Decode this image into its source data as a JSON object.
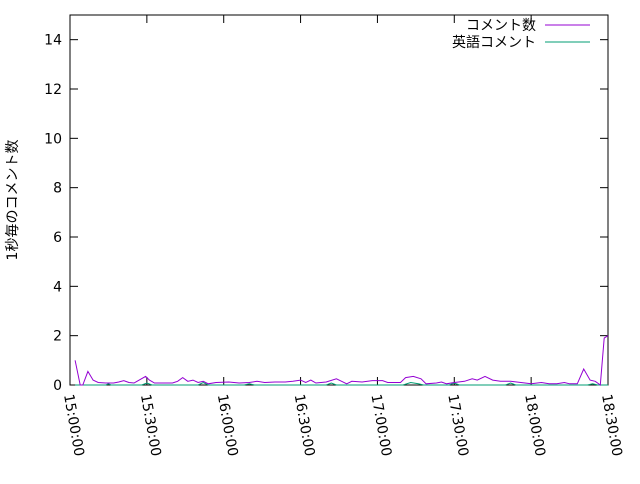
{
  "chart_data": {
    "type": "line",
    "title": "",
    "xlabel": "",
    "ylabel": "1秒毎のコメント数",
    "xlim": [
      "15:00:00",
      "18:30:00"
    ],
    "ylim": [
      0,
      15
    ],
    "xticks": [
      "15:00:00",
      "15:30:00",
      "16:00:00",
      "16:30:00",
      "17:00:00",
      "17:30:00",
      "18:00:00",
      "18:30:00"
    ],
    "yticks": [
      "0",
      "2",
      "4",
      "6",
      "8",
      "10",
      "12",
      "14"
    ],
    "grid": false,
    "legend_position": "top-right",
    "series": [
      {
        "name": "コメント数",
        "color": "#9400d3",
        "points": [
          [
            "15:02:00",
            1.0
          ],
          [
            "15:04:00",
            0
          ],
          [
            "15:05:00",
            0
          ],
          [
            "15:07:00",
            0.55
          ],
          [
            "15:09:00",
            0.2
          ],
          [
            "15:11:00",
            0.1
          ],
          [
            "15:14:00",
            0.08
          ],
          [
            "15:17:00",
            0.08
          ],
          [
            "15:19:00",
            0.12
          ],
          [
            "15:21:00",
            0.18
          ],
          [
            "15:23:00",
            0.1
          ],
          [
            "15:25:00",
            0.08
          ],
          [
            "15:27:00",
            0.2
          ],
          [
            "15:29:30",
            0.35
          ],
          [
            "15:31:00",
            0.2
          ],
          [
            "15:33:00",
            0.08
          ],
          [
            "15:36:00",
            0.08
          ],
          [
            "15:40:00",
            0.08
          ],
          [
            "15:42:00",
            0.15
          ],
          [
            "15:44:00",
            0.3
          ],
          [
            "15:46:00",
            0.15
          ],
          [
            "15:48:00",
            0.2
          ],
          [
            "15:50:00",
            0.1
          ],
          [
            "15:52:00",
            0.15
          ],
          [
            "15:54:00",
            0.05
          ],
          [
            "15:57:00",
            0.1
          ],
          [
            "16:02:00",
            0.12
          ],
          [
            "16:06:00",
            0.08
          ],
          [
            "16:10:00",
            0.1
          ],
          [
            "16:13:00",
            0.15
          ],
          [
            "16:16:00",
            0.1
          ],
          [
            "16:20:00",
            0.12
          ],
          [
            "16:24:00",
            0.12
          ],
          [
            "16:27:00",
            0.15
          ],
          [
            "16:30:00",
            0.2
          ],
          [
            "16:32:00",
            0.1
          ],
          [
            "16:34:00",
            0.2
          ],
          [
            "16:36:00",
            0.08
          ],
          [
            "16:40:00",
            0.12
          ],
          [
            "16:44:00",
            0.25
          ],
          [
            "16:46:00",
            0.15
          ],
          [
            "16:48:00",
            0.05
          ],
          [
            "16:50:00",
            0.15
          ],
          [
            "16:54:00",
            0.12
          ],
          [
            "16:58:00",
            0.18
          ],
          [
            "17:02:00",
            0.18
          ],
          [
            "17:04:00",
            0.1
          ],
          [
            "17:07:00",
            0.1
          ],
          [
            "17:09:00",
            0.1
          ],
          [
            "17:11:00",
            0.3
          ],
          [
            "17:14:00",
            0.35
          ],
          [
            "17:17:00",
            0.25
          ],
          [
            "17:19:00",
            0.05
          ],
          [
            "17:23:00",
            0.08
          ],
          [
            "17:25:00",
            0.12
          ],
          [
            "17:27:00",
            0.05
          ],
          [
            "17:30:00",
            0.1
          ],
          [
            "17:34:00",
            0.15
          ],
          [
            "17:37:00",
            0.25
          ],
          [
            "17:39:00",
            0.2
          ],
          [
            "17:42:00",
            0.35
          ],
          [
            "17:45:00",
            0.2
          ],
          [
            "17:48:00",
            0.15
          ],
          [
            "17:52:00",
            0.15
          ],
          [
            "17:56:00",
            0.1
          ],
          [
            "18:00:00",
            0.05
          ],
          [
            "18:04:00",
            0.1
          ],
          [
            "18:07:00",
            0.05
          ],
          [
            "18:10:00",
            0.05
          ],
          [
            "18:13:00",
            0.1
          ],
          [
            "18:15:00",
            0.05
          ],
          [
            "18:18:00",
            0.05
          ],
          [
            "18:20:30",
            0.65
          ],
          [
            "18:23:00",
            0.2
          ],
          [
            "18:25:00",
            0.15
          ],
          [
            "18:27:00",
            0
          ],
          [
            "18:28:30",
            1.9
          ],
          [
            "18:30:00",
            2.0
          ]
        ]
      },
      {
        "name": "英語コメント",
        "color": "#009e73",
        "points": [
          [
            "15:02:00",
            0
          ],
          [
            "15:14:00",
            0
          ],
          [
            "15:15:00",
            0.05
          ],
          [
            "15:16:00",
            0
          ],
          [
            "15:28:00",
            0
          ],
          [
            "15:30:00",
            0.08
          ],
          [
            "15:32:00",
            0
          ],
          [
            "15:50:00",
            0
          ],
          [
            "15:52:00",
            0.1
          ],
          [
            "15:54:00",
            0
          ],
          [
            "16:08:00",
            0
          ],
          [
            "16:10:00",
            0.05
          ],
          [
            "16:12:00",
            0
          ],
          [
            "16:40:00",
            0
          ],
          [
            "16:42:00",
            0.08
          ],
          [
            "16:44:00",
            0
          ],
          [
            "17:10:00",
            0
          ],
          [
            "17:13:00",
            0.1
          ],
          [
            "17:16:00",
            0.05
          ],
          [
            "17:18:00",
            0
          ],
          [
            "17:28:00",
            0
          ],
          [
            "17:30:00",
            0.08
          ],
          [
            "17:32:00",
            0
          ],
          [
            "17:50:00",
            0
          ],
          [
            "17:52:00",
            0.08
          ],
          [
            "17:54:00",
            0
          ],
          [
            "18:22:00",
            0
          ],
          [
            "18:24:00",
            0.05
          ],
          [
            "18:26:00",
            0
          ],
          [
            "18:30:00",
            0
          ]
        ]
      }
    ]
  }
}
